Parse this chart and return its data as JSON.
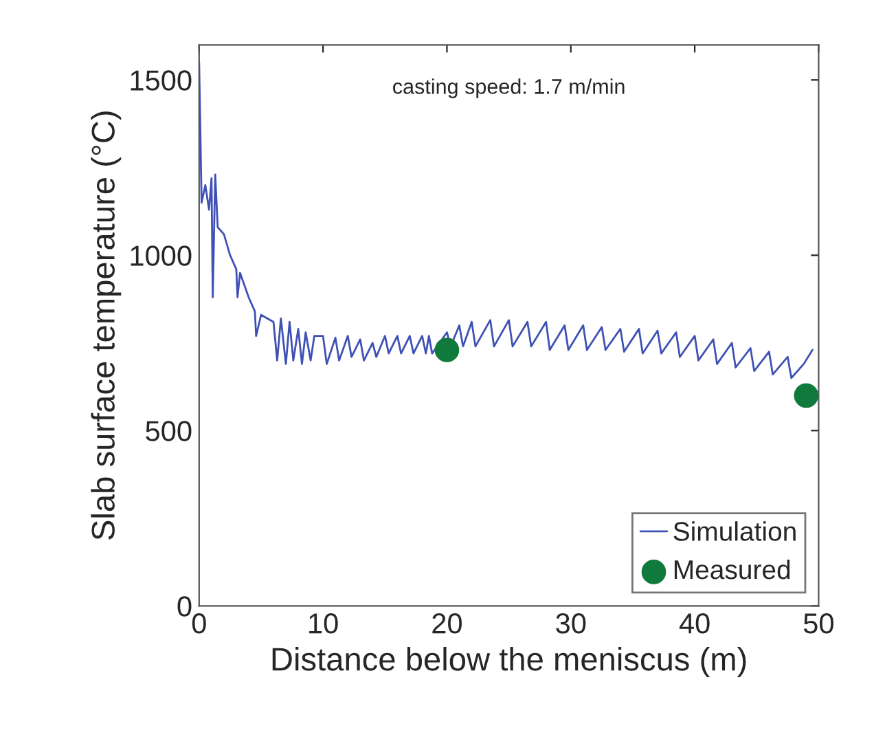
{
  "chart_data": {
    "type": "line",
    "xlabel": "Distance below the meniscus (m)",
    "ylabel": "Slab surface temperature (°C)",
    "annotations": [
      "casting speed: 1.7 m/min"
    ],
    "xlim": [
      0,
      50
    ],
    "ylim": [
      0,
      1600
    ],
    "xticks": [
      0,
      10,
      20,
      30,
      40,
      50
    ],
    "yticks": [
      0,
      500,
      1000,
      1500
    ],
    "grid": false,
    "legend": "bottom right",
    "series": [
      {
        "name": "Simulation",
        "color": "#3f51b5",
        "marker": "none",
        "x": [
          0,
          0.2,
          0.5,
          0.8,
          1.0,
          1.1,
          1.3,
          1.5,
          2.0,
          2.5,
          3.0,
          3.1,
          3.3,
          4.0,
          4.5,
          4.6,
          5.0,
          6.0,
          6.3,
          6.6,
          7.0,
          7.3,
          7.6,
          8.0,
          8.3,
          8.6,
          9.0,
          9.3,
          10.0,
          10.3,
          11.0,
          11.3,
          12.0,
          12.3,
          13.0,
          13.3,
          14.0,
          14.3,
          15.0,
          15.3,
          16.0,
          16.3,
          17.0,
          17.3,
          18.0,
          18.3,
          18.55,
          18.8,
          20.0,
          20.3,
          21.0,
          21.3,
          22.0,
          22.3,
          23.5,
          23.8,
          25.0,
          25.3,
          26.5,
          26.8,
          28.0,
          28.3,
          29.5,
          29.8,
          31.0,
          31.3,
          32.5,
          32.8,
          34.0,
          34.3,
          35.5,
          35.8,
          37.0,
          37.3,
          38.5,
          38.8,
          40.0,
          40.3,
          41.5,
          41.8,
          43.0,
          43.3,
          44.5,
          44.8,
          46.0,
          46.3,
          47.5,
          47.8,
          48.8,
          49.5
        ],
        "values": [
          1550,
          1150,
          1200,
          1130,
          1220,
          880,
          1230,
          1080,
          1060,
          1000,
          960,
          880,
          950,
          880,
          840,
          770,
          830,
          810,
          700,
          820,
          690,
          810,
          700,
          790,
          690,
          780,
          700,
          770,
          770,
          690,
          765,
          700,
          770,
          710,
          760,
          700,
          750,
          710,
          770,
          720,
          770,
          720,
          770,
          720,
          770,
          720,
          770,
          720,
          780,
          740,
          800,
          740,
          810,
          740,
          815,
          740,
          815,
          740,
          810,
          740,
          810,
          730,
          800,
          730,
          800,
          730,
          795,
          730,
          790,
          725,
          790,
          720,
          785,
          720,
          780,
          710,
          770,
          700,
          760,
          690,
          750,
          680,
          735,
          670,
          725,
          660,
          710,
          650,
          690,
          730
        ]
      },
      {
        "name": "Measured",
        "color": "#0f7a3c",
        "type": "scatter",
        "marker": "circle",
        "x": [
          20,
          49
        ],
        "values": [
          730,
          600
        ]
      }
    ]
  }
}
